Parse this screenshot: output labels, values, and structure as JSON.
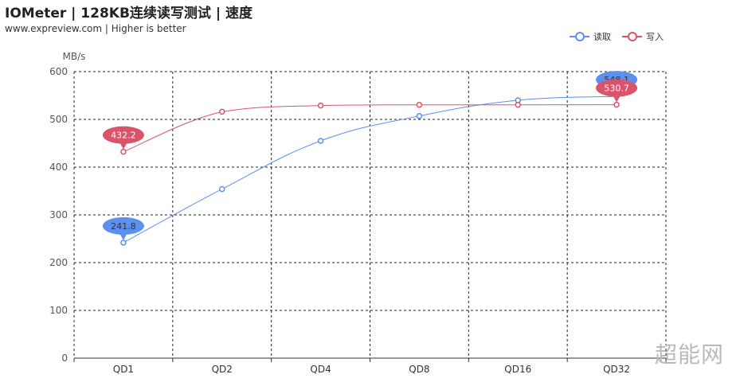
{
  "header": {
    "title": "IOMeter | 128KB连续读写测试 | 速度",
    "subtitle": "www.expreview.com | Higher is better"
  },
  "legend": [
    {
      "label": "读取",
      "color": "#5b8ff0"
    },
    {
      "label": "写入",
      "color": "#d9546b"
    }
  ],
  "watermark": "超能网",
  "chart_data": {
    "type": "line",
    "title": "IOMeter | 128KB连续读写测试 | 速度",
    "subtitle": "www.expreview.com | Higher is better",
    "xlabel": "",
    "ylabel": "MB/s",
    "categories": [
      "QD1",
      "QD2",
      "QD4",
      "QD8",
      "QD16",
      "QD32"
    ],
    "ylim": [
      0,
      600
    ],
    "yticks": [
      0,
      100,
      200,
      300,
      400,
      500,
      600
    ],
    "grid": true,
    "legend_position": "top-right",
    "smooth": true,
    "series": [
      {
        "name": "读取",
        "color": "#5b8ff0",
        "values": [
          241.8,
          354,
          455,
          507,
          540,
          548.1
        ],
        "labels": [
          {
            "index": 0,
            "text": "241.8"
          },
          {
            "index": 5,
            "text": "548.1"
          }
        ]
      },
      {
        "name": "写入",
        "color": "#d9546b",
        "values": [
          432.2,
          516,
          529,
          530.5,
          530.5,
          530.7
        ],
        "labels": [
          {
            "index": 0,
            "text": "432.2"
          },
          {
            "index": 5,
            "text": "530.7"
          }
        ]
      }
    ]
  }
}
